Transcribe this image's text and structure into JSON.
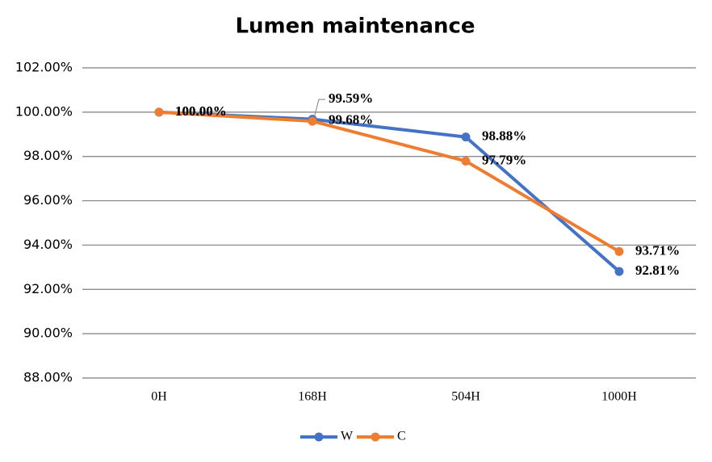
{
  "chart_data": {
    "type": "line",
    "title": "Lumen maintenance",
    "categories": [
      "0H",
      "168H",
      "504H",
      "1000H"
    ],
    "series": [
      {
        "name": "W",
        "color": "#4472c4",
        "values": [
          100,
          99.68,
          98.88,
          92.81
        ],
        "value_labels": [
          "100.00%",
          "99.68%",
          "98.88%",
          "92.81%"
        ]
      },
      {
        "name": "C",
        "color": "#ed7d31",
        "values": [
          100,
          99.59,
          97.79,
          93.71
        ],
        "value_labels": [
          "100.00%",
          "99.59%",
          "97.79%",
          "93.71%"
        ]
      }
    ],
    "ylim": [
      88,
      102
    ],
    "yticks": [
      {
        "value": 88,
        "label": "88.00%"
      },
      {
        "value": 90,
        "label": "90.00%"
      },
      {
        "value": 92,
        "label": "92.00%"
      },
      {
        "value": 94,
        "label": "94.00%"
      },
      {
        "value": 96,
        "label": "96.00%"
      },
      {
        "value": 98,
        "label": "98.00%"
      },
      {
        "value": 100,
        "label": "100.00%"
      },
      {
        "value": 102,
        "label": "102.00%"
      }
    ],
    "grid": true,
    "legend": "bottom"
  }
}
